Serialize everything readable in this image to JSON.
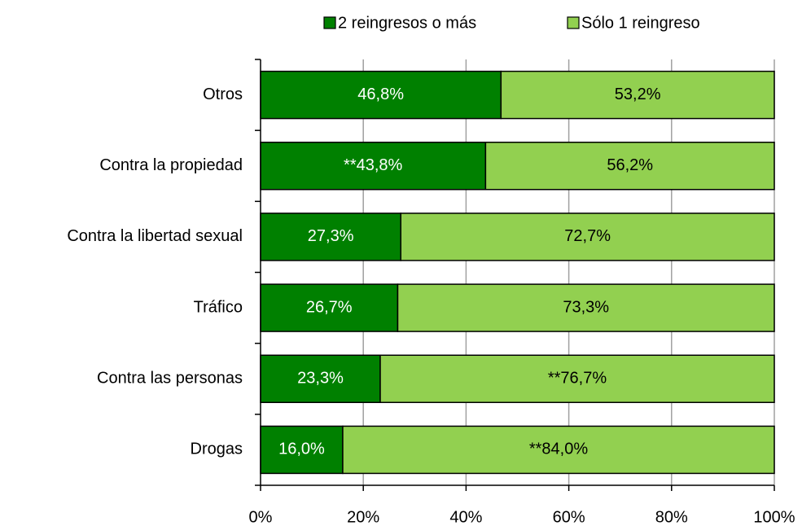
{
  "chart_data": {
    "type": "stacked_bar_horizontal",
    "categories": [
      "Otros",
      "Contra la propiedad",
      "Contra la libertad sexual",
      "Tráfico",
      "Contra las personas",
      "Drogas"
    ],
    "series": [
      {
        "name": "2 reingresos o más",
        "color": "#008000",
        "label_color": "#ffffff",
        "values": [
          46.8,
          43.8,
          27.3,
          26.7,
          23.3,
          16.0
        ],
        "value_labels": [
          "46,8%",
          "**43,8%",
          "27,3%",
          "26,7%",
          "23,3%",
          "16,0%"
        ]
      },
      {
        "name": "Sólo 1 reingreso",
        "color": "#92d050",
        "label_color": "#000000",
        "values": [
          53.2,
          56.2,
          72.7,
          73.3,
          76.7,
          84.0
        ],
        "value_labels": [
          "53,2%",
          "56,2%",
          "72,7%",
          "73,3%",
          "**76,7%",
          "**84,0%"
        ]
      }
    ],
    "xlim": [
      0,
      100
    ],
    "xticks": [
      {
        "value": 0,
        "label": "0%"
      },
      {
        "value": 20,
        "label": "20%"
      },
      {
        "value": 40,
        "label": "40%"
      },
      {
        "value": 60,
        "label": "60%"
      },
      {
        "value": 80,
        "label": "80%"
      },
      {
        "value": 100,
        "label": "100%"
      }
    ],
    "grid": true,
    "legend": "top"
  }
}
